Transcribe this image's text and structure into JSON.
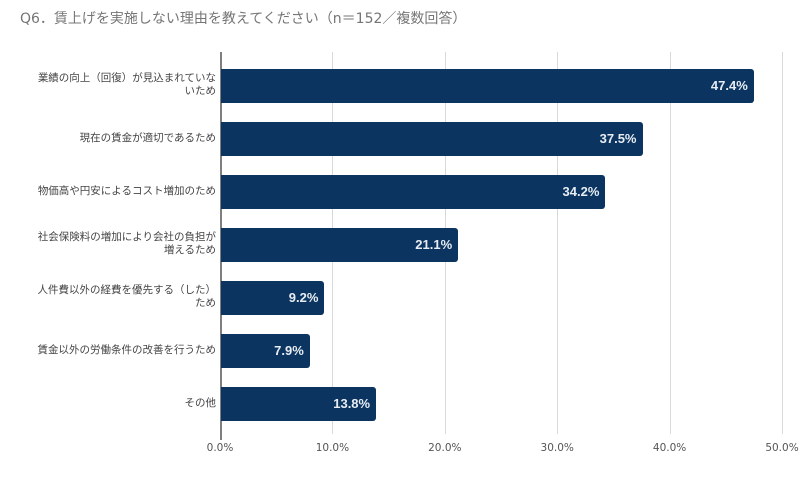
{
  "title": "Q6．賃上げを実施しない理由を教えてください（n＝152／複数回答）",
  "colors": {
    "bar": "#0b3560",
    "label": "#e8edf3",
    "grid": "#d9d9d9"
  },
  "chart_data": {
    "type": "bar",
    "orientation": "horizontal",
    "title": "Q6．賃上げを実施しない理由を教えてください（n＝152／複数回答）",
    "categories": [
      "業績の向上（回復）が見込まれていないため",
      "現在の賃金が適切であるため",
      "物価高や円安によるコスト増加のため",
      "社会保険料の増加により会社の負担が増えるため",
      "人件費以外の経費を優先する（した）ため",
      "賃金以外の労働条件の改善を行うため",
      "その他"
    ],
    "values": [
      47.4,
      37.5,
      34.2,
      21.1,
      9.2,
      7.9,
      13.8
    ],
    "value_labels": [
      "47.4%",
      "37.5%",
      "34.2%",
      "21.1%",
      "9.2%",
      "7.9%",
      "13.8%"
    ],
    "xlabel": "",
    "ylabel": "",
    "xlim": [
      0,
      50
    ],
    "x_ticks": [
      "0.0%",
      "10.0%",
      "20.0%",
      "30.0%",
      "40.0%",
      "50.0%"
    ],
    "grid": true,
    "legend": "none"
  },
  "category_lines": [
    [
      "業績の向上（回復）が見込まれていな",
      "いため"
    ],
    [
      "現在の賃金が適切であるため"
    ],
    [
      "物価高や円安によるコスト増加のため"
    ],
    [
      "社会保険料の増加により会社の負担が",
      "増えるため"
    ],
    [
      "人件費以外の経費を優先する（した）",
      "ため"
    ],
    [
      "賃金以外の労働条件の改善を行うため"
    ],
    [
      "その他"
    ]
  ]
}
